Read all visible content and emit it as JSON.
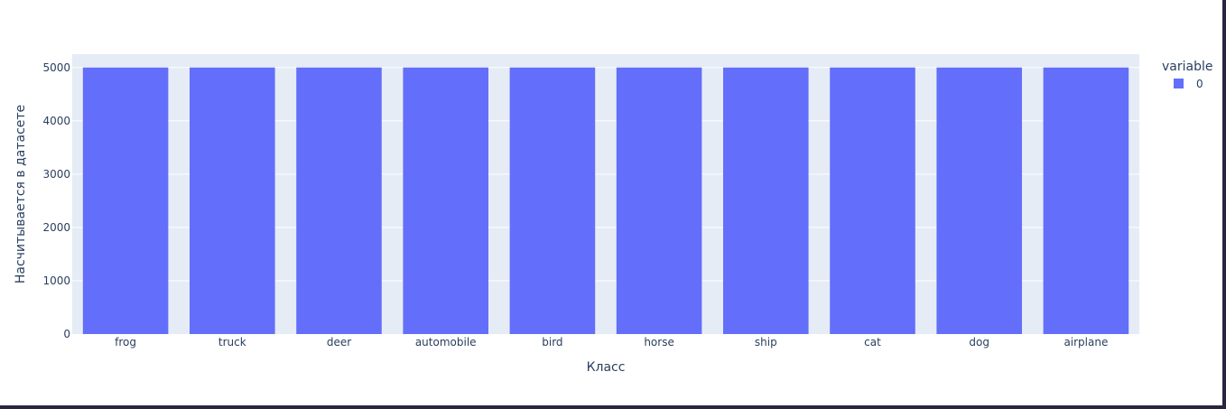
{
  "chart_data": {
    "type": "bar",
    "categories": [
      "frog",
      "truck",
      "deer",
      "automobile",
      "bird",
      "horse",
      "ship",
      "cat",
      "dog",
      "airplane"
    ],
    "series": [
      {
        "name": "0",
        "values": [
          5000,
          5000,
          5000,
          5000,
          5000,
          5000,
          5000,
          5000,
          5000,
          5000
        ]
      }
    ],
    "xlabel": "Класс",
    "ylabel": "Насчитывается в датасете",
    "ylim": [
      0,
      5250
    ],
    "yticks": [
      0,
      1000,
      2000,
      3000,
      4000,
      5000
    ],
    "grid": true,
    "legend": {
      "title": "variable",
      "placement": "right"
    },
    "colors": {
      "bar": "#636efa",
      "plot_bg": "#e5ecf6",
      "grid": "#ffffff",
      "text": "#2a3f5f"
    }
  }
}
